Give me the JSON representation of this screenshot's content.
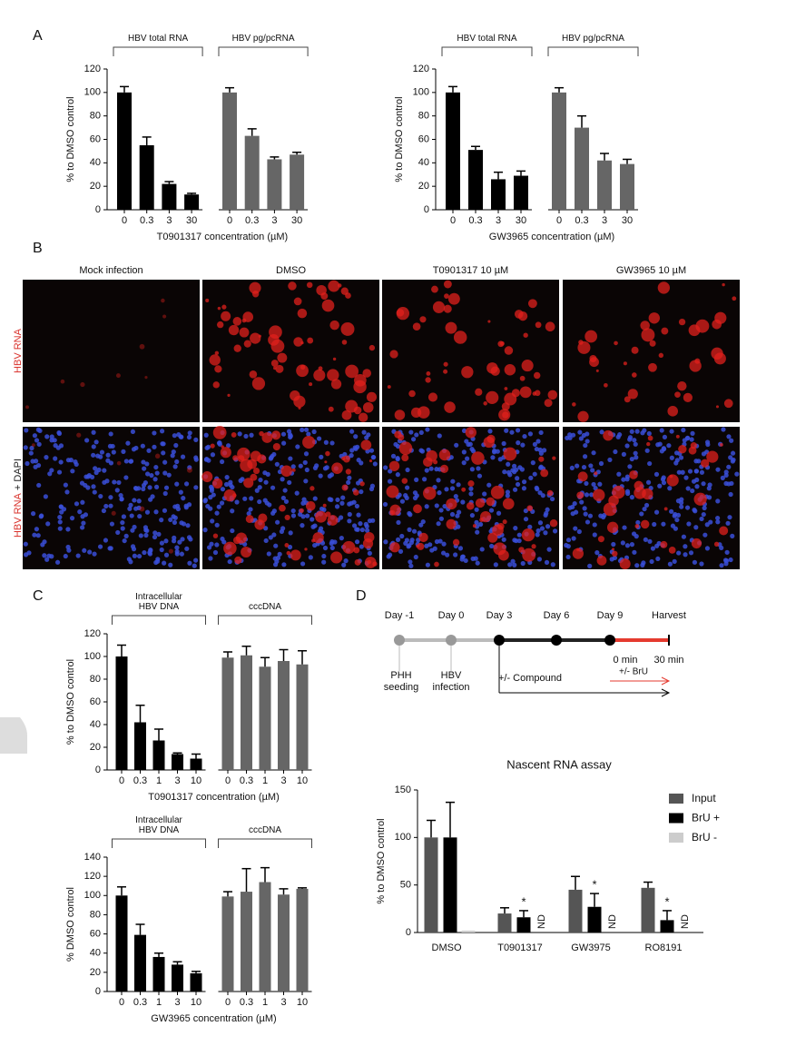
{
  "panel_labels": [
    "A",
    "B",
    "C",
    "D"
  ],
  "chart_data": [
    {
      "type": "bar",
      "ylabel": "% to DMSO control",
      "xlabel": "T0901317 concentration (µM)",
      "ylim": [
        0,
        120
      ],
      "yticks": [
        0,
        20,
        40,
        60,
        80,
        100,
        120
      ],
      "groups": [
        {
          "label": "HBV total RNA",
          "categories": [
            "0",
            "0.3",
            "3",
            "30"
          ],
          "values": [
            100,
            55,
            22,
            13
          ],
          "errors": [
            5,
            7,
            2,
            1
          ],
          "color": "#000000"
        },
        {
          "label": "HBV pg/pcRNA",
          "categories": [
            "0",
            "0.3",
            "3",
            "30"
          ],
          "values": [
            100,
            63,
            43,
            47
          ],
          "errors": [
            4,
            6,
            2,
            2
          ],
          "color": "#666666"
        }
      ]
    },
    {
      "type": "bar",
      "ylabel": "% to DMSO control",
      "xlabel": "GW3965 concentration (µM)",
      "ylim": [
        0,
        120
      ],
      "yticks": [
        0,
        20,
        40,
        60,
        80,
        100,
        120
      ],
      "groups": [
        {
          "label": "HBV total RNA",
          "categories": [
            "0",
            "0.3",
            "3",
            "30"
          ],
          "values": [
            100,
            51,
            26,
            29
          ],
          "errors": [
            5,
            3,
            6,
            4
          ],
          "color": "#000000"
        },
        {
          "label": "HBV pg/pcRNA",
          "categories": [
            "0",
            "0.3",
            "3",
            "30"
          ],
          "values": [
            100,
            70,
            42,
            39
          ],
          "errors": [
            4,
            10,
            6,
            4
          ],
          "color": "#666666"
        }
      ]
    },
    {
      "type": "bar",
      "ylabel": "% to DMSO control",
      "xlabel": "T0901317 concentration (µM)",
      "ylim": [
        0,
        120
      ],
      "yticks": [
        0,
        20,
        40,
        60,
        80,
        100,
        120
      ],
      "groups": [
        {
          "label": "Intracellular\nHBV DNA",
          "categories": [
            "0",
            "0.3",
            "1",
            "3",
            "10"
          ],
          "values": [
            100,
            42,
            26,
            14,
            10
          ],
          "errors": [
            10,
            15,
            10,
            1,
            4
          ],
          "color": "#000000"
        },
        {
          "label": "cccDNA",
          "categories": [
            "0",
            "0.3",
            "1",
            "3",
            "10"
          ],
          "values": [
            99,
            101,
            91,
            96,
            93
          ],
          "errors": [
            5,
            8,
            8,
            10,
            12
          ],
          "color": "#666666"
        }
      ]
    },
    {
      "type": "bar",
      "ylabel": "% DMSO control",
      "xlabel": "GW3965 concentration (µM)",
      "ylim": [
        0,
        140
      ],
      "yticks": [
        0,
        20,
        40,
        60,
        80,
        100,
        120,
        140
      ],
      "groups": [
        {
          "label": "Intracellular\nHBV DNA",
          "categories": [
            "0",
            "0.3",
            "1",
            "3",
            "10"
          ],
          "values": [
            100,
            59,
            36,
            28,
            19
          ],
          "errors": [
            9,
            11,
            4,
            3,
            2
          ],
          "color": "#000000"
        },
        {
          "label": "cccDNA",
          "categories": [
            "0",
            "0.3",
            "1",
            "3",
            "10"
          ],
          "values": [
            99,
            104,
            114,
            101,
            107
          ],
          "errors": [
            5,
            24,
            15,
            6,
            1
          ],
          "color": "#666666"
        }
      ]
    },
    {
      "type": "grouped-bar",
      "title": "Nascent RNA assay",
      "ylabel": "% to DMSO control",
      "categories": [
        "DMSO",
        "T0901317",
        "GW3975",
        "RO8191"
      ],
      "ylim": [
        0,
        150
      ],
      "yticks": [
        0,
        50,
        100,
        150
      ],
      "series": [
        {
          "name": "Input",
          "color": "#555555",
          "values": [
            100,
            20,
            45,
            47
          ],
          "errors": [
            18,
            6,
            14,
            6
          ]
        },
        {
          "name": "BrU +",
          "color": "#000000",
          "values": [
            100,
            16,
            27,
            13
          ],
          "errors": [
            37,
            7,
            14,
            10
          ],
          "significance": [
            null,
            "*",
            "*",
            "*"
          ]
        },
        {
          "name": "BrU -",
          "color": "#cccccc",
          "values": [
            2,
            null,
            null,
            null
          ],
          "value_labels": [
            null,
            "ND",
            "ND",
            "ND"
          ]
        }
      ]
    }
  ],
  "images": {
    "columns": [
      "Mock infection",
      "DMSO",
      "T0901317 10 µM",
      "GW3965 10 µM"
    ],
    "rows": [
      [
        "HBV RNA"
      ],
      [
        "HBV RNA",
        "+ DAPI"
      ]
    ]
  },
  "timeline": {
    "days": [
      "Day -1",
      "Day 0",
      "Day 3",
      "Day 6",
      "Day 9",
      "Harvest"
    ],
    "events": [
      "PHH\nseeding",
      "HBV\ninfection"
    ],
    "times": [
      "0 min",
      "30 min"
    ],
    "treatments": [
      "+/- Compound",
      "+/- BrU"
    ]
  }
}
